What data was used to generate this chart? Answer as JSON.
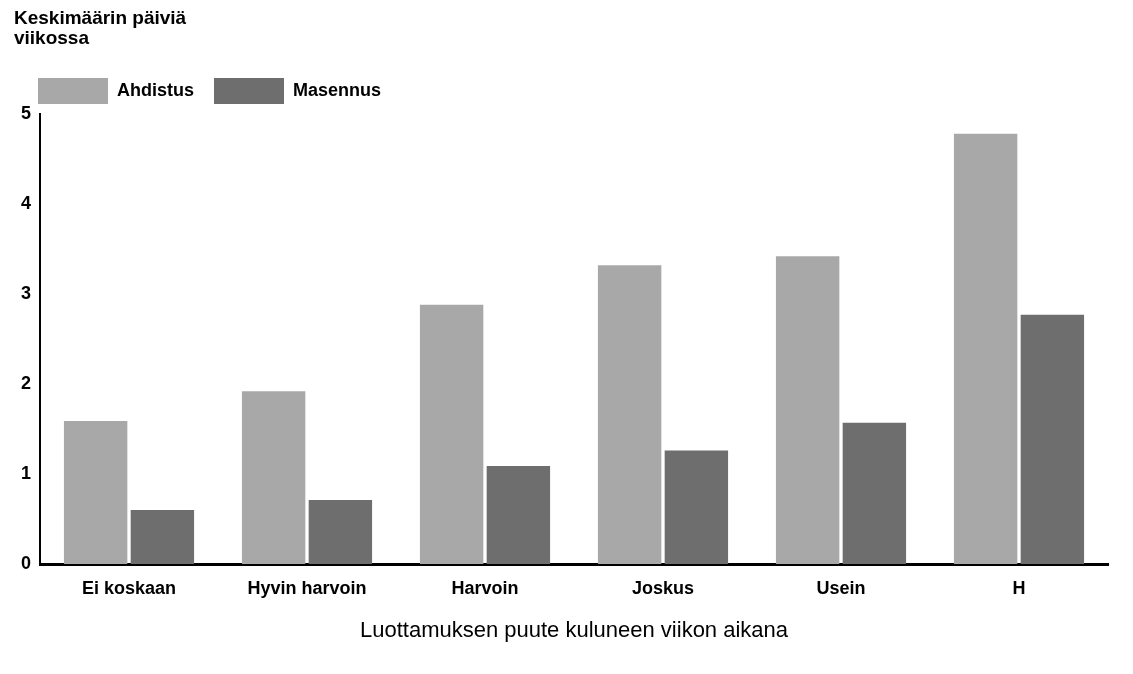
{
  "chart_data": {
    "type": "bar",
    "ylabel": "Keskimäärin päiviä viikossa",
    "xlabel": "Luottamuksen puute kuluneen viikon aikana",
    "categories": [
      "Ei koskaan",
      "Hyvin harvoin",
      "Harvoin",
      "Joskus",
      "Usein",
      "H"
    ],
    "series": [
      {
        "name": "Ahdistus",
        "color": "#a8a8a8",
        "values": [
          1.59,
          1.92,
          2.88,
          3.32,
          3.42,
          4.78
        ]
      },
      {
        "name": "Masennus",
        "color": "#6e6e6e",
        "values": [
          0.6,
          0.71,
          1.09,
          1.26,
          1.57,
          2.77
        ]
      }
    ],
    "ylim": [
      0,
      5
    ],
    "yticks": [
      0,
      1,
      2,
      3,
      4,
      5
    ],
    "grid": false,
    "legend": "top left"
  }
}
